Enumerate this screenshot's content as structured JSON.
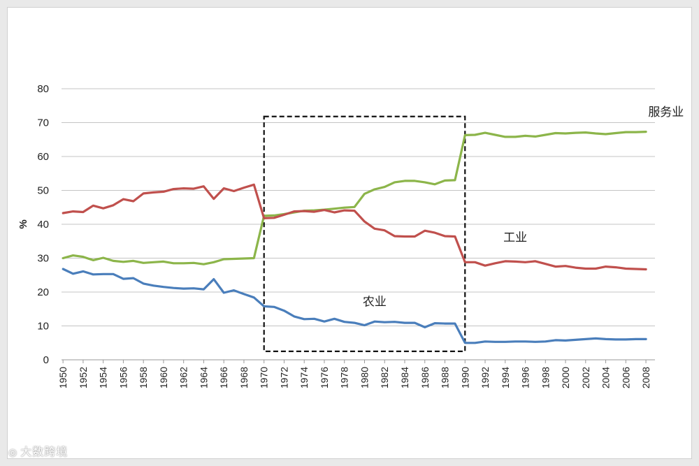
{
  "chart_data": {
    "type": "line",
    "title": "",
    "xlabel": "",
    "ylabel": "%",
    "ylim": [
      0,
      80
    ],
    "yticks": [
      0,
      10,
      20,
      30,
      40,
      50,
      60,
      70,
      80
    ],
    "xticks": [
      1950,
      1952,
      1954,
      1956,
      1958,
      1960,
      1962,
      1964,
      1966,
      1968,
      1970,
      1972,
      1974,
      1976,
      1978,
      1980,
      1982,
      1984,
      1986,
      1988,
      1990,
      1992,
      1994,
      1996,
      1998,
      2000,
      2002,
      2004,
      2006,
      2008
    ],
    "grid": "horizontal",
    "x": [
      1950,
      1951,
      1952,
      1953,
      1954,
      1955,
      1956,
      1957,
      1958,
      1959,
      1960,
      1961,
      1962,
      1963,
      1964,
      1965,
      1966,
      1967,
      1968,
      1969,
      1970,
      1971,
      1972,
      1973,
      1974,
      1975,
      1976,
      1977,
      1978,
      1979,
      1980,
      1981,
      1982,
      1983,
      1984,
      1985,
      1986,
      1987,
      1988,
      1989,
      1990,
      1991,
      1992,
      1993,
      1994,
      1995,
      1996,
      1997,
      1998,
      1999,
      2000,
      2001,
      2002,
      2003,
      2004,
      2005,
      2006,
      2007,
      2008
    ],
    "series": [
      {
        "name": "服务业",
        "color": "#8cb54a",
        "values": [
          30.0,
          30.8,
          30.4,
          29.4,
          30.1,
          29.2,
          28.9,
          29.2,
          28.6,
          28.8,
          29.0,
          28.5,
          28.5,
          28.6,
          28.2,
          28.8,
          29.7,
          29.8,
          29.9,
          30.0,
          42.5,
          42.6,
          43.0,
          43.5,
          44.0,
          44.1,
          44.3,
          44.6,
          44.9,
          45.1,
          49.0,
          50.3,
          51.0,
          52.4,
          52.8,
          52.8,
          52.4,
          51.8,
          52.9,
          53.0,
          66.3,
          66.4,
          67.0,
          66.4,
          65.8,
          65.8,
          66.1,
          65.9,
          66.4,
          66.9,
          66.8,
          67.0,
          67.1,
          66.8,
          66.6,
          66.9,
          67.2,
          67.2,
          67.3
        ]
      },
      {
        "name": "工业",
        "color": "#c0504d",
        "values": [
          43.3,
          43.8,
          43.6,
          45.5,
          44.7,
          45.6,
          47.4,
          46.8,
          49.1,
          49.4,
          49.6,
          50.4,
          50.6,
          50.5,
          51.2,
          47.5,
          50.6,
          49.8,
          50.8,
          51.7,
          41.8,
          41.9,
          42.8,
          43.8,
          43.9,
          43.7,
          44.2,
          43.5,
          44.1,
          44.0,
          40.8,
          38.7,
          38.2,
          36.5,
          36.4,
          36.4,
          38.1,
          37.5,
          36.5,
          36.4,
          28.8,
          28.8,
          27.8,
          28.5,
          29.1,
          29.0,
          28.8,
          29.1,
          28.3,
          27.5,
          27.7,
          27.2,
          26.9,
          26.9,
          27.5,
          27.3,
          26.9,
          26.8,
          26.7
        ]
      },
      {
        "name": "农业",
        "color": "#4a7ebb",
        "values": [
          26.8,
          25.4,
          26.1,
          25.2,
          25.3,
          25.3,
          23.9,
          24.1,
          22.5,
          21.9,
          21.5,
          21.2,
          21.0,
          21.1,
          20.8,
          23.8,
          19.8,
          20.5,
          19.4,
          18.4,
          15.8,
          15.6,
          14.5,
          12.8,
          12.0,
          12.1,
          11.3,
          12.1,
          11.2,
          10.9,
          10.2,
          11.3,
          11.1,
          11.2,
          10.9,
          10.9,
          9.6,
          10.8,
          10.7,
          10.7,
          5.0,
          5.0,
          5.4,
          5.3,
          5.3,
          5.4,
          5.4,
          5.3,
          5.4,
          5.8,
          5.7,
          5.9,
          6.1,
          6.3,
          6.1,
          6.0,
          6.0,
          6.1,
          6.1
        ]
      }
    ],
    "annotations": [
      {
        "text": "服务业",
        "x": 2010,
        "y": 72
      },
      {
        "text": "工业",
        "x": 1995,
        "y": 35
      },
      {
        "text": "农业",
        "x": 1981,
        "y": 16
      }
    ],
    "highlight_box": {
      "x_range": [
        1970,
        1990
      ],
      "y_range": [
        2.5,
        71.8
      ],
      "style": "dashed"
    }
  },
  "watermark": {
    "icon": "brand-logo-icon",
    "text": "大数跨境"
  }
}
